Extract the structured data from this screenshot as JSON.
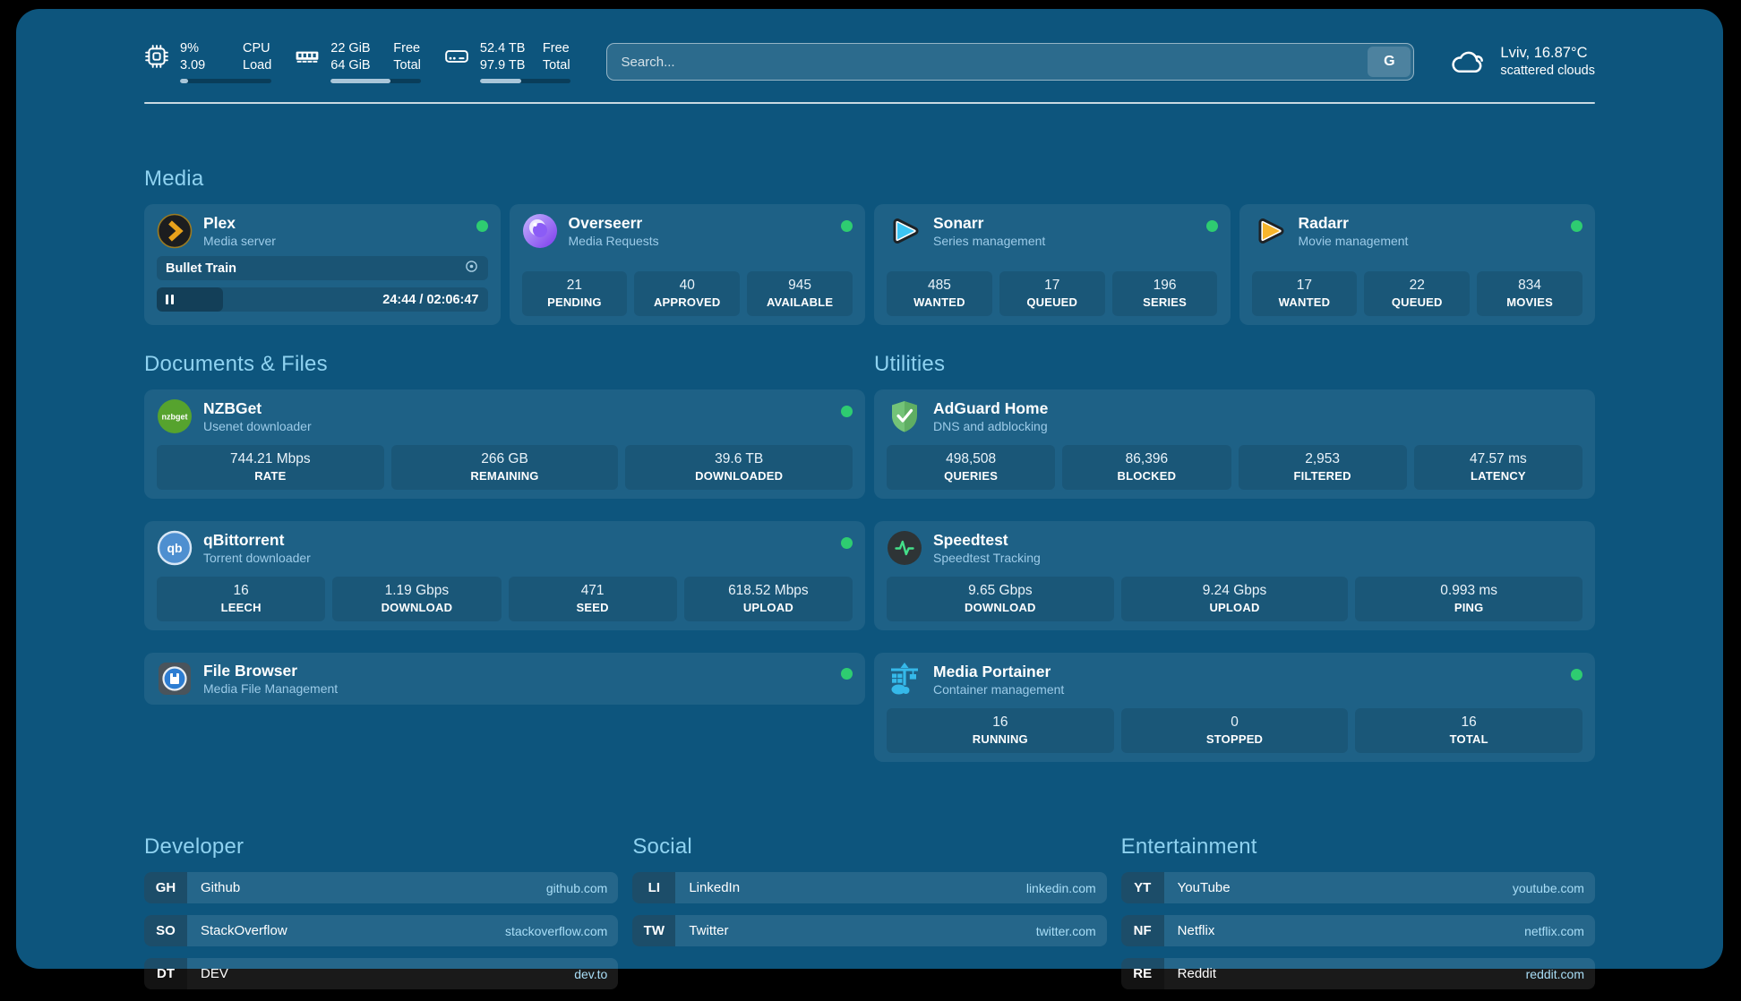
{
  "colors": {
    "page_background": "#000000",
    "panel_background": "#0d557d",
    "heading_accent": "#8fd2f0",
    "status_online": "#2ecc71",
    "link_text": "#a9def7"
  },
  "topbar": {
    "stats": [
      {
        "icon": "cpu-icon",
        "value_line1": "9%",
        "value_line2": "3.09",
        "label_line1": "CPU",
        "label_line2": "Load",
        "progress_pct": 9
      },
      {
        "icon": "ram-icon",
        "value_line1": "22 GiB",
        "value_line2": "64 GiB",
        "label_line1": "Free",
        "label_line2": "Total",
        "progress_pct": 66
      },
      {
        "icon": "disk-icon",
        "value_line1": "52.4 TB",
        "value_line2": "97.9 TB",
        "label_line1": "Free",
        "label_line2": "Total",
        "progress_pct": 46
      }
    ],
    "search": {
      "placeholder": "Search...",
      "engine_button": "G"
    },
    "weather": {
      "icon": "cloud-icon",
      "summary": "Lviv, 16.87°C",
      "detail": "scattered clouds"
    }
  },
  "media": {
    "heading": "Media",
    "plex": {
      "icon": "plex-icon",
      "name": "Plex",
      "subtitle": "Media server",
      "status": "online",
      "now_playing": {
        "title": "Bullet Train",
        "elapsed_total": "24:44 / 02:06:47",
        "progress_pct": 20
      }
    },
    "overseerr": {
      "icon": "overseerr-icon",
      "name": "Overseerr",
      "subtitle": "Media Requests",
      "status": "online",
      "stats": [
        {
          "value": "21",
          "label": "PENDING"
        },
        {
          "value": "40",
          "label": "APPROVED"
        },
        {
          "value": "945",
          "label": "AVAILABLE"
        }
      ]
    },
    "sonarr": {
      "icon": "sonarr-icon",
      "name": "Sonarr",
      "subtitle": "Series management",
      "status": "online",
      "stats": [
        {
          "value": "485",
          "label": "WANTED"
        },
        {
          "value": "17",
          "label": "QUEUED"
        },
        {
          "value": "196",
          "label": "SERIES"
        }
      ]
    },
    "radarr": {
      "icon": "radarr-icon",
      "name": "Radarr",
      "subtitle": "Movie management",
      "status": "online",
      "stats": [
        {
          "value": "17",
          "label": "WANTED"
        },
        {
          "value": "22",
          "label": "QUEUED"
        },
        {
          "value": "834",
          "label": "MOVIES"
        }
      ]
    }
  },
  "documents": {
    "heading": "Documents & Files",
    "nzbget": {
      "icon": "nzbget-icon",
      "name": "NZBGet",
      "subtitle": "Usenet downloader",
      "status": "online",
      "stats": [
        {
          "value": "744.21 Mbps",
          "label": "RATE"
        },
        {
          "value": "266 GB",
          "label": "REMAINING"
        },
        {
          "value": "39.6 TB",
          "label": "DOWNLOADED"
        }
      ]
    },
    "qbittorrent": {
      "icon": "qbittorrent-icon",
      "name": "qBittorrent",
      "subtitle": "Torrent downloader",
      "status": "online",
      "stats": [
        {
          "value": "16",
          "label": "LEECH"
        },
        {
          "value": "1.19 Gbps",
          "label": "DOWNLOAD"
        },
        {
          "value": "471",
          "label": "SEED"
        },
        {
          "value": "618.52 Mbps",
          "label": "UPLOAD"
        }
      ]
    },
    "filebrowser": {
      "icon": "filebrowser-icon",
      "name": "File Browser",
      "subtitle": "Media File Management",
      "status": "online"
    }
  },
  "utilities": {
    "heading": "Utilities",
    "adguard": {
      "icon": "adguard-icon",
      "name": "AdGuard Home",
      "subtitle": "DNS and adblocking",
      "stats": [
        {
          "value": "498,508",
          "label": "QUERIES"
        },
        {
          "value": "86,396",
          "label": "BLOCKED"
        },
        {
          "value": "2,953",
          "label": "FILTERED"
        },
        {
          "value": "47.57 ms",
          "label": "LATENCY"
        }
      ]
    },
    "speedtest": {
      "icon": "speedtest-icon",
      "name": "Speedtest",
      "subtitle": "Speedtest Tracking",
      "stats": [
        {
          "value": "9.65 Gbps",
          "label": "DOWNLOAD"
        },
        {
          "value": "9.24 Gbps",
          "label": "UPLOAD"
        },
        {
          "value": "0.993 ms",
          "label": "PING"
        }
      ]
    },
    "portainer": {
      "icon": "portainer-icon",
      "name": "Media Portainer",
      "subtitle": "Container management",
      "status": "online",
      "stats": [
        {
          "value": "16",
          "label": "RUNNING"
        },
        {
          "value": "0",
          "label": "STOPPED"
        },
        {
          "value": "16",
          "label": "TOTAL"
        }
      ]
    }
  },
  "bookmarks": [
    {
      "heading": "Developer",
      "links": [
        {
          "abbr": "GH",
          "name": "Github",
          "url": "github.com"
        },
        {
          "abbr": "SO",
          "name": "StackOverflow",
          "url": "stackoverflow.com"
        },
        {
          "abbr": "DT",
          "name": "DEV",
          "url": "dev.to"
        }
      ]
    },
    {
      "heading": "Social",
      "links": [
        {
          "abbr": "LI",
          "name": "LinkedIn",
          "url": "linkedin.com"
        },
        {
          "abbr": "TW",
          "name": "Twitter",
          "url": "twitter.com"
        }
      ]
    },
    {
      "heading": "Entertainment",
      "links": [
        {
          "abbr": "YT",
          "name": "YouTube",
          "url": "youtube.com"
        },
        {
          "abbr": "NF",
          "name": "Netflix",
          "url": "netflix.com"
        },
        {
          "abbr": "RE",
          "name": "Reddit",
          "url": "reddit.com"
        }
      ]
    }
  ]
}
